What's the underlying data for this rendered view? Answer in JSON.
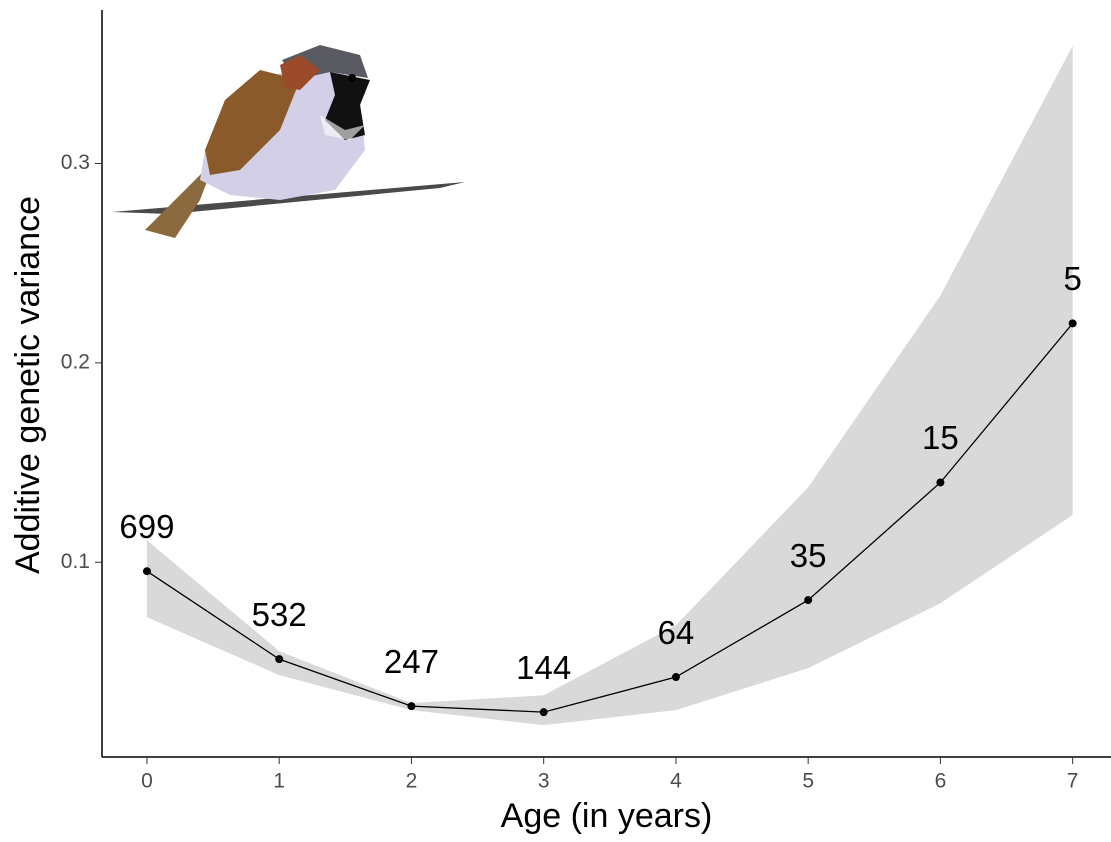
{
  "chart_data": {
    "type": "line",
    "x_label": "Age (in years)",
    "y_label": "Additive genetic variance",
    "x": [
      0,
      1,
      2,
      3,
      4,
      5,
      6,
      7
    ],
    "series": [
      {
        "color": "#000000",
        "band_color": "#d9d9d9",
        "values": [
          0.0955,
          0.0514,
          0.0278,
          0.0248,
          0.0424,
          0.081,
          0.14,
          0.2198
        ],
        "ci_lower": [
          0.0724,
          0.0434,
          0.0258,
          0.0183,
          0.0258,
          0.0469,
          0.0794,
          0.1236
        ],
        "ci_upper": [
          0.111,
          0.0554,
          0.0293,
          0.0333,
          0.0684,
          0.1376,
          0.2338,
          0.359
        ],
        "labels": [
          699,
          532,
          247,
          144,
          64,
          35,
          15,
          5
        ]
      }
    ],
    "xlim": [
      -0.34,
      7.29
    ],
    "xticks": [
      0,
      1,
      2,
      3,
      4,
      5,
      6,
      7
    ],
    "ylim": [
      0.0023,
      0.377
    ],
    "yticks": [
      0.1,
      0.2,
      0.3
    ]
  }
}
